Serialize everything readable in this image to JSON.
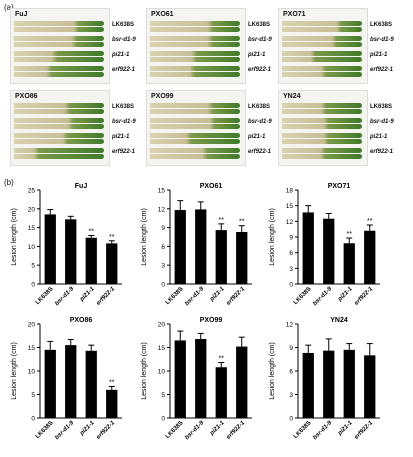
{
  "panel_a": {
    "label": "(a)",
    "genotypes": [
      "LK638S",
      "bsr-d1-9",
      "pi21-1",
      "erf922-1"
    ],
    "strains": [
      "FuJ",
      "PXO61",
      "PXO71",
      "PXO86",
      "PXO99",
      "YN24"
    ]
  },
  "panel_b": {
    "label": "(b)"
  },
  "chart_data": [
    {
      "type": "bar",
      "title": "FuJ",
      "ylabel": "Lesion length (cm)",
      "ylim": [
        0,
        25
      ],
      "yticks": [
        0,
        5,
        10,
        15,
        20,
        25
      ],
      "categories": [
        "LK638S",
        "bsr-d1-9",
        "pi21-1",
        "erf922-1"
      ],
      "values": [
        18.5,
        17.2,
        12.3,
        10.8
      ],
      "errors": [
        1.3,
        0.8,
        0.6,
        0.7
      ],
      "annotations": [
        "",
        "",
        "**",
        "**"
      ]
    },
    {
      "type": "bar",
      "title": "PXO61",
      "ylabel": "Lesion length (cm)",
      "ylim": [
        0,
        15
      ],
      "yticks": [
        0,
        3,
        6,
        9,
        12,
        15
      ],
      "categories": [
        "LK638S",
        "bsr-d1-9",
        "pi21-1",
        "erf922-1"
      ],
      "values": [
        11.8,
        11.9,
        8.6,
        8.3
      ],
      "errors": [
        1.5,
        1.2,
        1.0,
        1.0
      ],
      "annotations": [
        "",
        "",
        "**",
        "**"
      ]
    },
    {
      "type": "bar",
      "title": "PXO71",
      "ylabel": "Lesion length (cm)",
      "ylim": [
        0,
        18
      ],
      "yticks": [
        0,
        3,
        6,
        9,
        12,
        15,
        18
      ],
      "categories": [
        "LK638S",
        "bsr-d1-9",
        "pi21-1",
        "erf922-1"
      ],
      "values": [
        13.7,
        12.5,
        7.8,
        10.2
      ],
      "errors": [
        1.3,
        1.0,
        1.0,
        1.1
      ],
      "annotations": [
        "",
        "",
        "**",
        "**"
      ]
    },
    {
      "type": "bar",
      "title": "PXO86",
      "ylabel": "Lesion length (cm)",
      "ylim": [
        0,
        20
      ],
      "yticks": [
        0,
        5,
        10,
        15,
        20
      ],
      "categories": [
        "LK638S",
        "bsr-d1-9",
        "pi21-1",
        "erf922-1"
      ],
      "values": [
        14.5,
        15.5,
        14.3,
        6.0
      ],
      "errors": [
        1.8,
        1.2,
        1.2,
        0.7
      ],
      "annotations": [
        "",
        "",
        "",
        "**"
      ]
    },
    {
      "type": "bar",
      "title": "PXO99",
      "ylabel": "Lesion length (cm)",
      "ylim": [
        0,
        20
      ],
      "yticks": [
        0,
        5,
        10,
        15,
        20
      ],
      "categories": [
        "LK638S",
        "bsr-d1-9",
        "pi21-1",
        "erf922-1"
      ],
      "values": [
        16.5,
        16.8,
        10.8,
        15.2
      ],
      "errors": [
        2.0,
        1.2,
        1.0,
        2.0
      ],
      "annotations": [
        "",
        "",
        "**",
        ""
      ]
    },
    {
      "type": "bar",
      "title": "YN24",
      "ylabel": "Lesion length (cm)",
      "ylim": [
        0,
        12
      ],
      "yticks": [
        0,
        3,
        6,
        9,
        12
      ],
      "categories": [
        "LK638S",
        "bsr-d1-9",
        "pi21-1",
        "erf922-1"
      ],
      "values": [
        8.3,
        8.6,
        8.7,
        8.0
      ],
      "errors": [
        1.0,
        1.5,
        0.8,
        1.5
      ],
      "annotations": [
        "",
        "",
        "",
        ""
      ]
    }
  ]
}
